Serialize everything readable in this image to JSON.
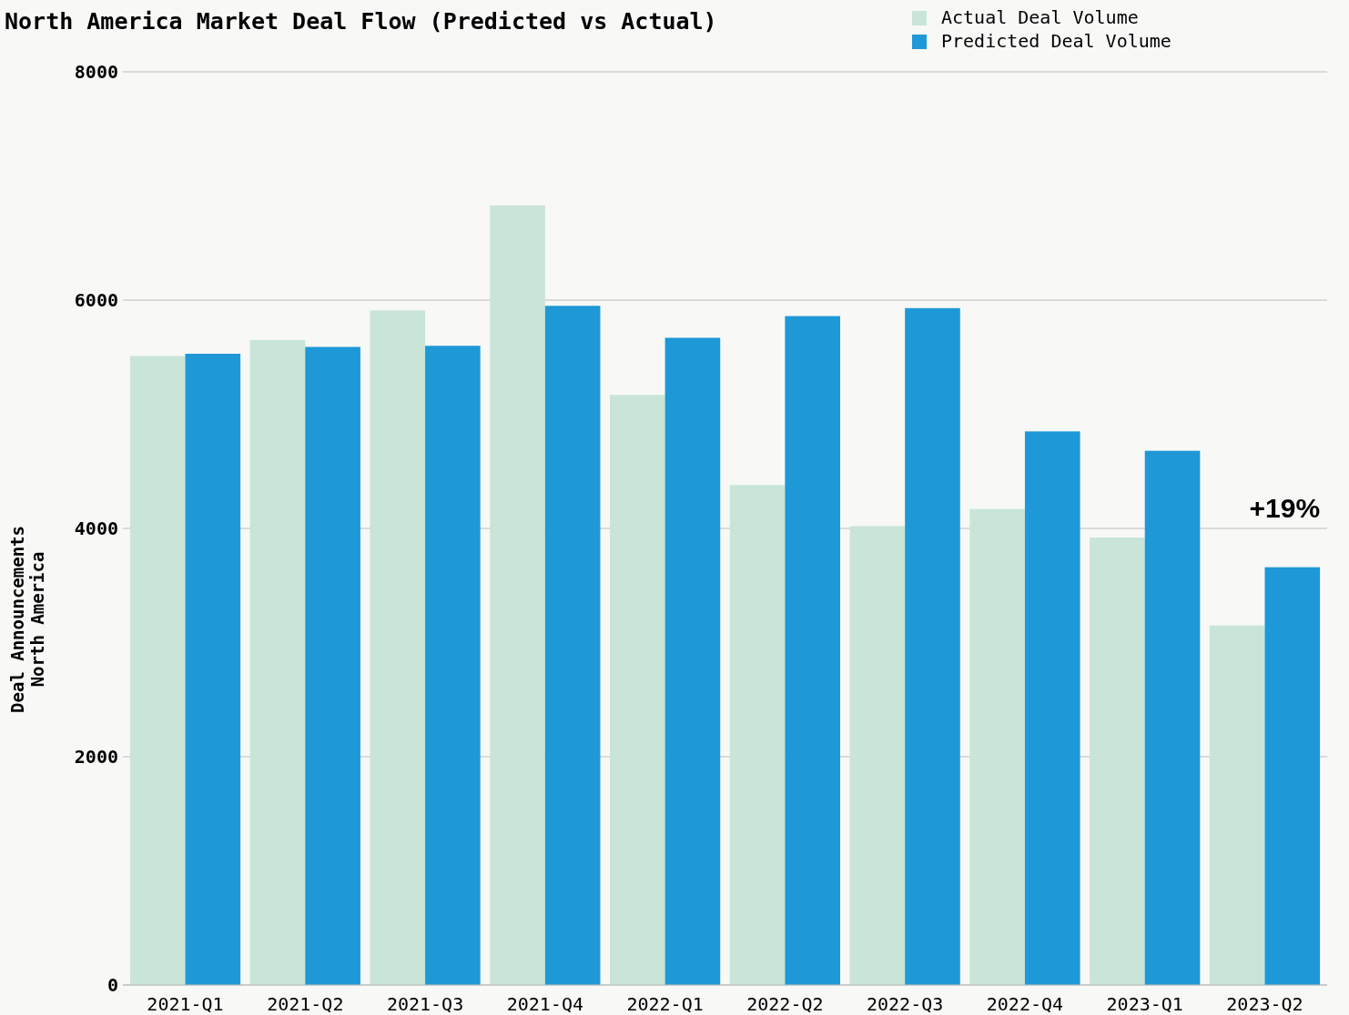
{
  "chart_data": {
    "type": "bar",
    "title": "North America Market Deal Flow (Predicted vs Actual)",
    "ylabel": "Deal Announcements\nNorth America",
    "categories": [
      "2021-Q1",
      "2021-Q2",
      "2021-Q3",
      "2021-Q4",
      "2022-Q1",
      "2022-Q2",
      "2022-Q3",
      "2022-Q4",
      "2023-Q1",
      "2023-Q2"
    ],
    "series": [
      {
        "name": "Actual Deal Volume",
        "color": "#c8e5d8",
        "values": [
          5510,
          5650,
          5910,
          6830,
          5170,
          4380,
          4020,
          4170,
          3920,
          3150
        ]
      },
      {
        "name": "Predicted Deal Volume",
        "color": "#1e98d6",
        "values": [
          5530,
          5590,
          5600,
          5950,
          5670,
          5860,
          5930,
          4850,
          4680,
          3660
        ]
      }
    ],
    "ylim": [
      0,
      8000
    ],
    "yticks": [
      0,
      2000,
      4000,
      6000,
      8000
    ],
    "grid": "y",
    "legend": "top right",
    "annotations": [
      {
        "text": "+19%",
        "x": "2023-Q2",
        "y": 3660
      }
    ]
  }
}
